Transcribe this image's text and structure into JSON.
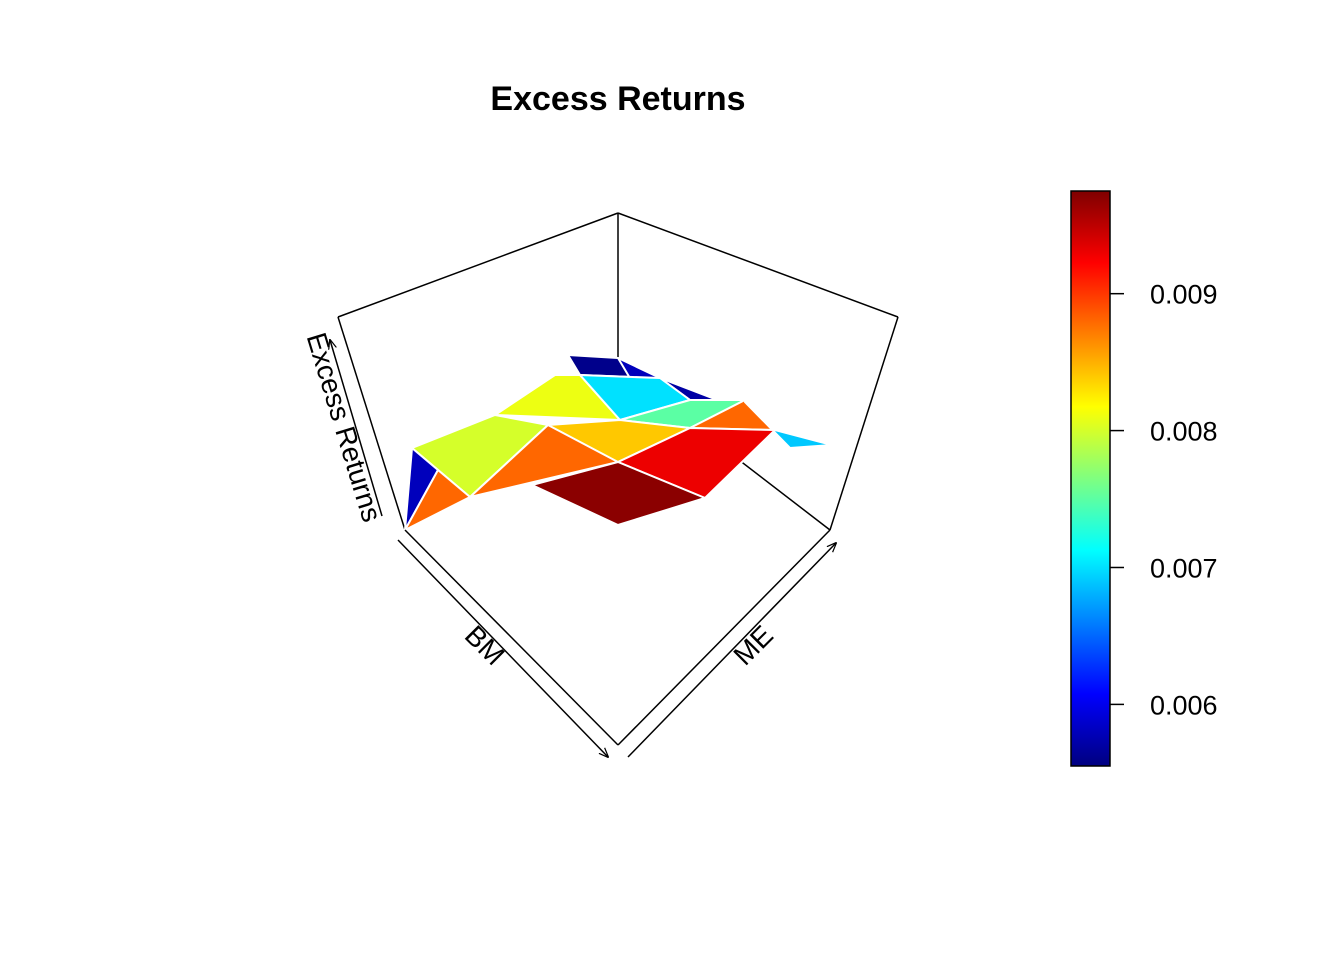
{
  "chart_data": {
    "type": "surface3d",
    "title": "Excess Returns",
    "xlabel": "BM",
    "ylabel": "ME",
    "zlabel": "Excess Returns",
    "colorbar": {
      "palette": "jet",
      "range": [
        0.00555,
        0.00975
      ],
      "ticks": [
        0.006,
        0.007,
        0.008,
        0.009
      ],
      "tick_labels": [
        "0.006",
        "0.007",
        "0.008",
        "0.009"
      ]
    },
    "grid_note": "4x4 grid of cells; values are estimated mean excess return per cell",
    "bm_index": [
      1,
      2,
      3,
      4,
      5
    ],
    "me_index": [
      1,
      2,
      3,
      4,
      5
    ],
    "cell_values": [
      [
        0.0056,
        0.0058,
        0.0057,
        0.0069
      ],
      [
        0.0081,
        0.007,
        0.0075,
        0.0088
      ],
      [
        0.008,
        0.0088,
        0.0084,
        0.0093
      ],
      [
        0.0058,
        0.0088,
        0.0097,
        0.0093
      ]
    ],
    "colors": {
      "surface_edge": "#ffffff",
      "box": "#000000"
    }
  }
}
